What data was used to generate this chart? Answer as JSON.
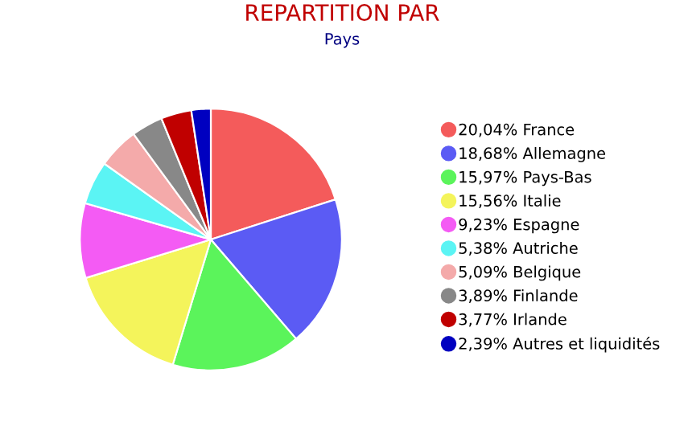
{
  "chart_data": {
    "type": "pie",
    "title": "REPARTITION PAR",
    "subtitle": "Pays",
    "categories": [
      "France",
      "Allemagne",
      "Pays-Bas",
      "Italie",
      "Espagne",
      "Autriche",
      "Belgique",
      "Finlande",
      "Irlande",
      "Autres et liquidités"
    ],
    "values": [
      20.04,
      18.68,
      15.97,
      15.56,
      9.23,
      5.38,
      5.09,
      3.89,
      3.77,
      2.39
    ],
    "value_labels": [
      "20,04%",
      "18,68%",
      "15,97%",
      "15,56%",
      "9,23%",
      "5,38%",
      "5,09%",
      "3,89%",
      "3,77%",
      "2,39%"
    ],
    "colors": [
      "#f45b5b",
      "#5b5bf4",
      "#5bf45b",
      "#f4f45b",
      "#f45bf4",
      "#5bf4f4",
      "#f4aaaa",
      "#888888",
      "#c00000",
      "#0000c0"
    ],
    "legend": "right"
  }
}
